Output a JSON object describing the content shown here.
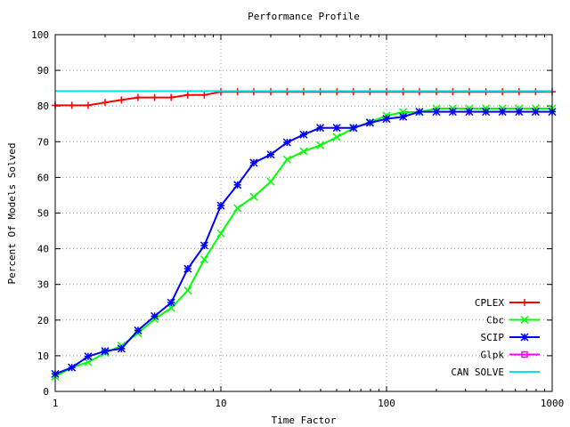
{
  "chart_data": {
    "type": "line",
    "title": "Performance Profile",
    "xlabel": "Time Factor",
    "ylabel": "Percent Of Models Solved",
    "xscale": "log",
    "xlim": [
      1,
      1000
    ],
    "ylim": [
      0,
      100
    ],
    "xticks": [
      1,
      10,
      100,
      1000
    ],
    "xtick_labels": [
      "1",
      "10",
      "100",
      "1000"
    ],
    "yticks": [
      0,
      10,
      20,
      30,
      40,
      50,
      60,
      70,
      80,
      90,
      100
    ],
    "ytick_labels": [
      "0",
      "10",
      "20",
      "30",
      "40",
      "50",
      "60",
      "70",
      "80",
      "90",
      "100"
    ],
    "grid": true,
    "legend_position": "bottom-right",
    "series": [
      {
        "name": "CPLEX",
        "color": "#ff0000",
        "marker": "plus",
        "x": [
          1,
          1.26,
          1.58,
          2,
          2.51,
          3.16,
          3.98,
          5.01,
          6.31,
          7.94,
          10,
          12.6,
          15.8,
          20,
          25.1,
          31.6,
          39.8,
          50.1,
          63.1,
          79.4,
          100,
          126,
          158,
          200,
          251,
          316,
          398,
          501,
          631,
          794,
          1000
        ],
        "y": [
          80.2,
          80.2,
          80.2,
          81.0,
          81.7,
          82.4,
          82.4,
          82.4,
          83.1,
          83.1,
          84.0,
          84.0,
          84.0,
          84.0,
          84.0,
          84.0,
          84.0,
          84.0,
          84.0,
          84.0,
          84.0,
          84.0,
          84.0,
          84.0,
          84.0,
          84.0,
          84.0,
          84.0,
          84.0,
          84.0,
          84.0
        ]
      },
      {
        "name": "Cbc",
        "color": "#00ff00",
        "marker": "cross",
        "x": [
          1,
          1.26,
          1.58,
          2,
          2.51,
          3.16,
          3.98,
          5.01,
          6.31,
          7.94,
          10,
          12.6,
          15.8,
          20,
          25.1,
          31.6,
          39.8,
          50.1,
          63.1,
          79.4,
          100,
          126,
          158,
          200,
          251,
          316,
          398,
          501,
          631,
          794,
          1000
        ],
        "y": [
          4.2,
          6.7,
          8.2,
          10.8,
          12.8,
          16.3,
          20.3,
          23.4,
          28.3,
          37.0,
          44.3,
          51.4,
          54.6,
          58.8,
          65.0,
          67.3,
          69.0,
          71.3,
          73.8,
          75.5,
          77.3,
          78.3,
          78.3,
          79.3,
          79.3,
          79.3,
          79.3,
          79.3,
          79.3,
          79.3,
          79.3
        ]
      },
      {
        "name": "SCIP",
        "color": "#0000ff",
        "marker": "star",
        "x": [
          1,
          1.26,
          1.58,
          2,
          2.51,
          3.16,
          3.98,
          5.01,
          6.31,
          7.94,
          10,
          12.6,
          15.8,
          20,
          25.1,
          31.6,
          39.8,
          50.1,
          63.1,
          79.4,
          100,
          126,
          158,
          200,
          251,
          316,
          398,
          501,
          631,
          794,
          1000
        ],
        "y": [
          4.9,
          6.7,
          9.8,
          11.3,
          12.0,
          17.1,
          21.1,
          24.9,
          34.4,
          40.9,
          52.1,
          57.9,
          64.1,
          66.4,
          69.8,
          72.0,
          73.9,
          73.9,
          73.9,
          75.3,
          76.4,
          77.0,
          78.4,
          78.4,
          78.4,
          78.4,
          78.4,
          78.4,
          78.4,
          78.4,
          78.4
        ]
      },
      {
        "name": "Glpk",
        "color": "#ff00ff",
        "marker": "square",
        "x": [],
        "y": []
      },
      {
        "name": "CAN SOLVE",
        "color": "#00e5ee",
        "marker": "none",
        "x": [
          1,
          1000
        ],
        "y": [
          84.2,
          84.2
        ]
      }
    ]
  }
}
